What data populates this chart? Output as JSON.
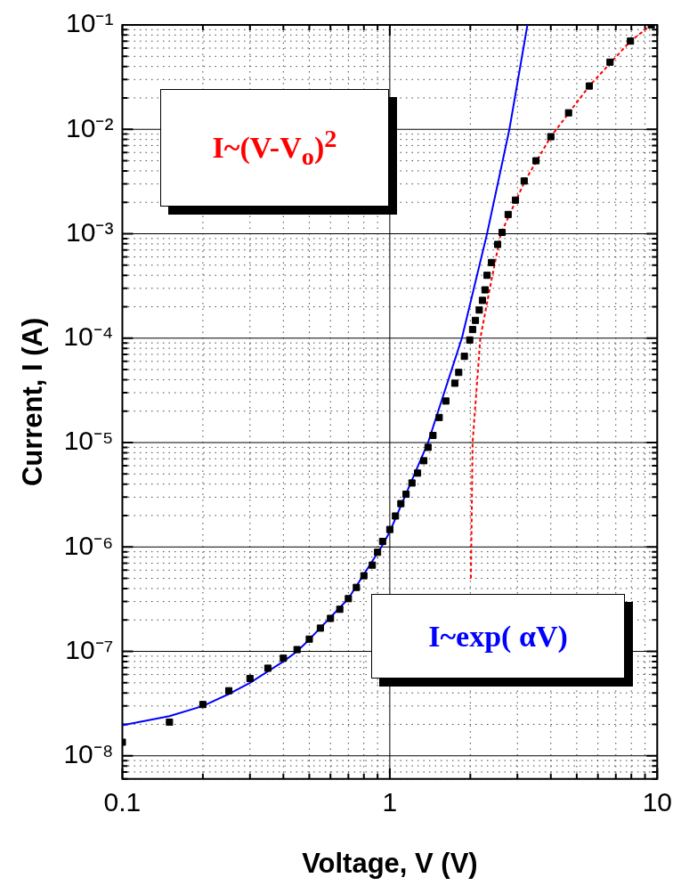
{
  "chart_data": {
    "type": "scatter",
    "xlabel": "Voltage, V (V)",
    "ylabel": "Current, I (A)",
    "log": "xy",
    "grid": true,
    "legend": false,
    "xlim": [
      0.1,
      10
    ],
    "ylim": [
      6e-09,
      0.1
    ],
    "xticks": [
      0.1,
      {
        "value": 0.2,
        "label": null
      },
      {
        "value": 0.3,
        "label": null
      },
      {
        "value": 0.4,
        "label": null
      },
      {
        "value": 0.5,
        "label": null
      },
      {
        "value": 0.6,
        "label": null
      },
      {
        "value": 0.7,
        "label": null
      },
      {
        "value": 0.8,
        "label": null
      },
      {
        "value": 0.9,
        "label": null
      },
      1,
      {
        "value": 2,
        "label": null
      },
      {
        "value": 3,
        "label": null
      },
      {
        "value": 4,
        "label": null
      },
      {
        "value": 5,
        "label": null
      },
      {
        "value": 6,
        "label": null
      },
      {
        "value": 7,
        "label": null
      },
      {
        "value": 8,
        "label": null
      },
      {
        "value": 9,
        "label": null
      },
      10
    ],
    "yticks": [
      {
        "value": 6e-09,
        "label": null
      },
      {
        "value": 7e-09,
        "label": null
      },
      {
        "value": 8e-09,
        "label": null
      },
      {
        "value": 9e-09,
        "label": null
      },
      {
        "value": 1e-08,
        "label": "10⁻⁸"
      },
      {
        "value": 2e-08,
        "label": null
      },
      {
        "value": 3e-08,
        "label": null
      },
      {
        "value": 4e-08,
        "label": null
      },
      {
        "value": 5e-08,
        "label": null
      },
      {
        "value": 6e-08,
        "label": null
      },
      {
        "value": 7e-08,
        "label": null
      },
      {
        "value": 8e-08,
        "label": null
      },
      {
        "value": 9e-08,
        "label": null
      },
      {
        "value": 1e-07,
        "label": "10⁻⁷"
      },
      {
        "value": 2e-07,
        "label": null
      },
      {
        "value": 3e-07,
        "label": null
      },
      {
        "value": 4e-07,
        "label": null
      },
      {
        "value": 5e-07,
        "label": null
      },
      {
        "value": 6e-07,
        "label": null
      },
      {
        "value": 7e-07,
        "label": null
      },
      {
        "value": 8e-07,
        "label": null
      },
      {
        "value": 9e-07,
        "label": null
      },
      {
        "value": 1e-06,
        "label": "10⁻⁶"
      },
      {
        "value": 2e-06,
        "label": null
      },
      {
        "value": 3e-06,
        "label": null
      },
      {
        "value": 4e-06,
        "label": null
      },
      {
        "value": 5e-06,
        "label": null
      },
      {
        "value": 6e-06,
        "label": null
      },
      {
        "value": 7e-06,
        "label": null
      },
      {
        "value": 8e-06,
        "label": null
      },
      {
        "value": 9e-06,
        "label": null
      },
      {
        "value": 1e-05,
        "label": "10⁻⁵"
      },
      {
        "value": 2e-05,
        "label": null
      },
      {
        "value": 3e-05,
        "label": null
      },
      {
        "value": 4e-05,
        "label": null
      },
      {
        "value": 5e-05,
        "label": null
      },
      {
        "value": 6e-05,
        "label": null
      },
      {
        "value": 7e-05,
        "label": null
      },
      {
        "value": 8e-05,
        "label": null
      },
      {
        "value": 9e-05,
        "label": null
      },
      {
        "value": 0.0001,
        "label": "10⁻⁴"
      },
      {
        "value": 0.0002,
        "label": null
      },
      {
        "value": 0.0003,
        "label": null
      },
      {
        "value": 0.0004,
        "label": null
      },
      {
        "value": 0.0005,
        "label": null
      },
      {
        "value": 0.0006,
        "label": null
      },
      {
        "value": 0.0007,
        "label": null
      },
      {
        "value": 0.0008,
        "label": null
      },
      {
        "value": 0.0009,
        "label": null
      },
      {
        "value": 0.001,
        "label": "10⁻³"
      },
      {
        "value": 0.002,
        "label": null
      },
      {
        "value": 0.003,
        "label": null
      },
      {
        "value": 0.004,
        "label": null
      },
      {
        "value": 0.005,
        "label": null
      },
      {
        "value": 0.006,
        "label": null
      },
      {
        "value": 0.007,
        "label": null
      },
      {
        "value": 0.008,
        "label": null
      },
      {
        "value": 0.009,
        "label": null
      },
      {
        "value": 0.01,
        "label": "10⁻²"
      },
      {
        "value": 0.02,
        "label": null
      },
      {
        "value": 0.03,
        "label": null
      },
      {
        "value": 0.04,
        "label": null
      },
      {
        "value": 0.05,
        "label": null
      },
      {
        "value": 0.06,
        "label": null
      },
      {
        "value": 0.07,
        "label": null
      },
      {
        "value": 0.08,
        "label": null
      },
      {
        "value": 0.09,
        "label": null
      },
      {
        "value": 0.1,
        "label": "10⁻¹"
      }
    ],
    "series": [
      {
        "marker": "square",
        "color": "#000000",
        "x": [
          0.1,
          0.15,
          0.2,
          0.25,
          0.3,
          0.35,
          0.4,
          0.45,
          0.5,
          0.55,
          0.6,
          0.65,
          0.7,
          0.75,
          0.8,
          0.86,
          0.9,
          0.94,
          1.0,
          1.05,
          1.1,
          1.15,
          1.21,
          1.27,
          1.34,
          1.39,
          1.45,
          1.53,
          1.62,
          1.75,
          1.81,
          1.9,
          1.99,
          2.04,
          2.09,
          2.16,
          2.22,
          2.27,
          2.31,
          2.4,
          2.53,
          2.63,
          2.77,
          2.95,
          3.18,
          3.52,
          4.0,
          4.66,
          5.57,
          6.66,
          7.94,
          9.5
        ],
        "values": [
          1.35e-08,
          2.1e-08,
          3.1e-08,
          4.2e-08,
          5.5e-08,
          6.9e-08,
          8.6e-08,
          1.04e-07,
          1.31e-07,
          1.67e-07,
          2.07e-07,
          2.53e-07,
          3.2e-07,
          4.1e-07,
          5.3e-07,
          6.7e-07,
          8.9e-07,
          1.13e-06,
          1.47e-06,
          1.98e-06,
          2.6e-06,
          3.2e-06,
          4.1e-06,
          5.1e-06,
          6.7e-06,
          9e-06,
          1.17e-05,
          1.74e-05,
          2.5e-05,
          3.7e-05,
          4.7e-05,
          6.7e-05,
          9.6e-05,
          0.000121,
          0.000148,
          0.000186,
          0.00023,
          0.00029,
          0.0004,
          0.00053,
          0.00079,
          0.00103,
          0.00153,
          0.0021,
          0.0032,
          0.005,
          0.0085,
          0.0144,
          0.026,
          0.044,
          0.07,
          0.1
        ]
      },
      {
        "type": "line",
        "line_style": "solid",
        "color": "#0000ff",
        "x": [
          0.1,
          0.15,
          0.2,
          0.25,
          0.3,
          0.4,
          0.45,
          0.5,
          0.7,
          0.93,
          1.0,
          1.39,
          1.86,
          2.31,
          2.8,
          3.27
        ],
        "values": [
          1.96e-08,
          2.4e-08,
          3e-08,
          3.9e-08,
          5e-08,
          8e-08,
          1e-07,
          1.3e-07,
          3.2e-07,
          1e-06,
          1.4e-06,
          1e-05,
          0.0001,
          0.001,
          0.01,
          0.1
        ]
      },
      {
        "type": "line",
        "line_style": "dashed",
        "color": "#ff0000",
        "x": [
          2.01,
          2.04,
          2.18,
          2.36,
          2.6,
          3.2,
          4.0,
          5.57,
          7.94,
          9.5
        ],
        "values": [
          5e-07,
          1e-05,
          0.0001,
          0.00029,
          0.001,
          0.0032,
          0.0085,
          0.026,
          0.07,
          0.1
        ]
      }
    ],
    "annotations": [
      "I~(V-V$_{o}$)$^{2}$",
      "I~exp( αV)"
    ]
  }
}
